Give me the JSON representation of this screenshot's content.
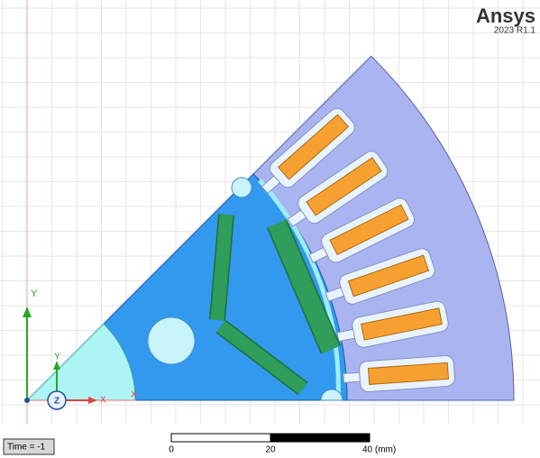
{
  "header": {
    "brand": "Ansys",
    "version": "2023 R1.1"
  },
  "axes": {
    "global_y": "Y",
    "global_x": "X",
    "triad_y": "Y",
    "triad_x": "X",
    "triad_z": "Z"
  },
  "scale_bar": {
    "ticks": [
      "0",
      "20",
      "40 (mm)"
    ]
  },
  "status": {
    "time": "Time = -1"
  }
}
